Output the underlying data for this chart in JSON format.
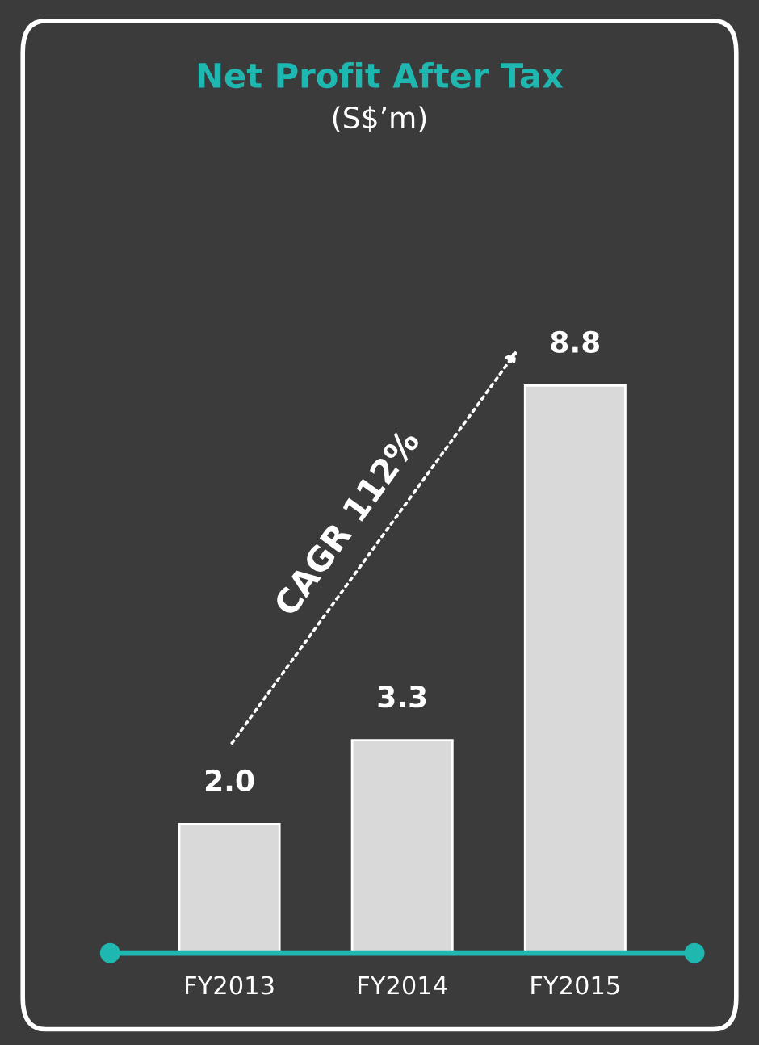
{
  "chart_data": {
    "type": "bar",
    "title": "Net Profit After Tax",
    "subtitle": "(S$’m)",
    "categories": [
      "FY2013",
      "FY2014",
      "FY2015"
    ],
    "values": [
      2.0,
      3.3,
      8.8
    ],
    "color": "#d9d9d9",
    "value_labels": [
      "2.0",
      "3.3",
      "8.8"
    ],
    "annotations": [
      "CAGR 112%"
    ]
  }
}
